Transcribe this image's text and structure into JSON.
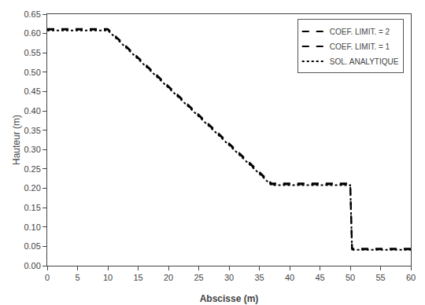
{
  "chart_data": {
    "type": "line",
    "xlabel": "Abscisse (m)",
    "ylabel": "Hauteur (m)",
    "xlim": [
      0,
      60
    ],
    "ylim": [
      0.0,
      0.65
    ],
    "xticks": [
      0,
      5,
      10,
      15,
      20,
      25,
      30,
      35,
      40,
      45,
      50,
      55,
      60
    ],
    "yticks": [
      {
        "value": 0.0,
        "label": "0.00"
      },
      0.05,
      {
        "value": 0.1,
        "label": "0.10"
      },
      0.15,
      {
        "value": 0.2,
        "label": "0.20"
      },
      0.25,
      {
        "value": 0.3,
        "label": "0.30"
      },
      0.35,
      {
        "value": 0.4,
        "label": "0.40"
      },
      0.45,
      {
        "value": 0.5,
        "label": "0.50"
      },
      0.55,
      {
        "value": 0.6,
        "label": "0.60"
      },
      0.65
    ],
    "grid": false,
    "legend": "upper right",
    "series": [
      {
        "name": "COEF. LIMIT. = 2",
        "color": "#000000",
        "line_style": "dashed",
        "x": [
          0,
          10.0,
          37.0,
          50.0,
          50.3,
          60
        ],
        "values": [
          0.61,
          0.61,
          0.21,
          0.21,
          0.042,
          0.042
        ]
      },
      {
        "name": "COEF. LIMIT. = 1",
        "color": "#000000",
        "line_style": "dashed",
        "x": [
          0,
          10.0,
          37.0,
          50.0,
          50.3,
          60
        ],
        "values": [
          0.612,
          0.612,
          0.213,
          0.213,
          0.044,
          0.044
        ]
      },
      {
        "name": "SOL. ANALYTIQUE",
        "color": "#000000",
        "line_style": "dotted",
        "x": [
          0,
          10.0,
          37.0,
          50.0,
          50.3,
          60
        ],
        "values": [
          0.608,
          0.608,
          0.208,
          0.208,
          0.041,
          0.041
        ]
      }
    ]
  }
}
